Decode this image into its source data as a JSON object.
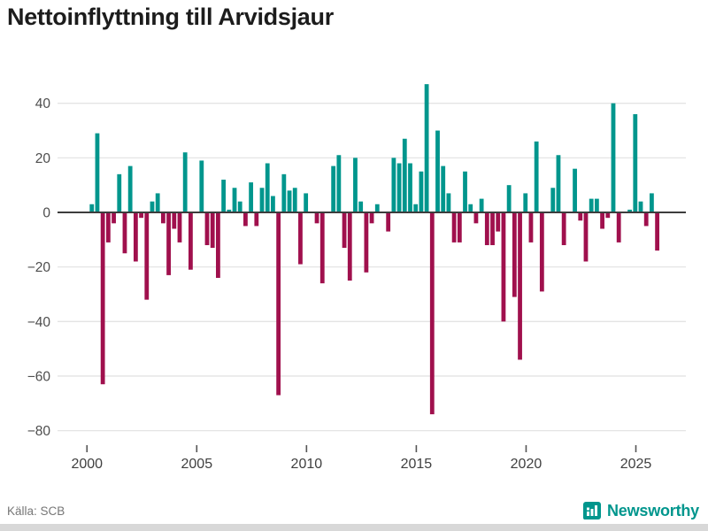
{
  "title": "Nettoinflyttning till Arvidsjaur",
  "source": "Källa: SCB",
  "brand": {
    "name": "Newsworthy",
    "color": "#00968D"
  },
  "colors": {
    "positive": "#00968D",
    "negative": "#A0104D",
    "grid": "#e4e4e4",
    "zero_line": "#3d3d3d",
    "axis_text": "#4d4d4d",
    "tick_mark": "#555555"
  },
  "chart_data": {
    "type": "bar",
    "title": "Nettoinflyttning till Arvidsjaur",
    "xlabel": "",
    "ylabel": "",
    "x_unit": "quarter",
    "grid": true,
    "legend": false,
    "ylim": [
      -85,
      50
    ],
    "y_ticks": [
      40,
      20,
      0,
      -20,
      -40,
      -60,
      -80
    ],
    "x_ticks": [
      2000,
      2005,
      2010,
      2015,
      2020,
      2025
    ],
    "categories": [
      "2000 Q1",
      "2000 Q2",
      "2000 Q3",
      "2000 Q4",
      "2001 Q1",
      "2001 Q2",
      "2001 Q3",
      "2001 Q4",
      "2002 Q1",
      "2002 Q2",
      "2002 Q3",
      "2002 Q4",
      "2003 Q1",
      "2003 Q2",
      "2003 Q3",
      "2003 Q4",
      "2004 Q1",
      "2004 Q2",
      "2004 Q3",
      "2004 Q4",
      "2005 Q1",
      "2005 Q2",
      "2005 Q3",
      "2005 Q4",
      "2006 Q1",
      "2006 Q2",
      "2006 Q3",
      "2006 Q4",
      "2007 Q1",
      "2007 Q2",
      "2007 Q3",
      "2007 Q4",
      "2008 Q1",
      "2008 Q2",
      "2008 Q3",
      "2008 Q4",
      "2009 Q1",
      "2009 Q2",
      "2009 Q3",
      "2009 Q4",
      "2010 Q1",
      "2010 Q2",
      "2010 Q3",
      "2010 Q4",
      "2011 Q1",
      "2011 Q2",
      "2011 Q3",
      "2011 Q4",
      "2012 Q1",
      "2012 Q2",
      "2012 Q3",
      "2012 Q4",
      "2013 Q1",
      "2013 Q2",
      "2013 Q3",
      "2013 Q4",
      "2014 Q1",
      "2014 Q2",
      "2014 Q3",
      "2014 Q4",
      "2015 Q1",
      "2015 Q2",
      "2015 Q3",
      "2015 Q4",
      "2016 Q1",
      "2016 Q2",
      "2016 Q3",
      "2016 Q4",
      "2017 Q1",
      "2017 Q2",
      "2017 Q3",
      "2017 Q4",
      "2018 Q1",
      "2018 Q2",
      "2018 Q3",
      "2018 Q4",
      "2019 Q1",
      "2019 Q2",
      "2019 Q3",
      "2019 Q4",
      "2020 Q1",
      "2020 Q2",
      "2020 Q3",
      "2020 Q4",
      "2021 Q1",
      "2021 Q2",
      "2021 Q3",
      "2021 Q4",
      "2022 Q1",
      "2022 Q2",
      "2022 Q3",
      "2022 Q4",
      "2023 Q1",
      "2023 Q2",
      "2023 Q3",
      "2023 Q4",
      "2024 Q1",
      "2024 Q2",
      "2024 Q3",
      "2024 Q4",
      "2025 Q1",
      "2025 Q2",
      "2025 Q3",
      "2025 Q4"
    ],
    "values": [
      3,
      29,
      -63,
      -11,
      -4,
      14,
      -15,
      17,
      -18,
      -2,
      -32,
      4,
      7,
      -4,
      -23,
      -6,
      -11,
      22,
      -21,
      0,
      19,
      -12,
      -13,
      -24,
      12,
      1,
      9,
      4,
      -5,
      11,
      -5,
      9,
      18,
      6,
      -67,
      14,
      8,
      9,
      -19,
      7,
      0,
      -4,
      -26,
      0,
      17,
      21,
      -13,
      -25,
      20,
      4,
      -22,
      -4,
      3,
      0,
      -7,
      20,
      18,
      27,
      18,
      3,
      15,
      47,
      -74,
      30,
      17,
      7,
      -11,
      -11,
      15,
      3,
      -4,
      5,
      -12,
      -12,
      -7,
      -40,
      10,
      -31,
      -54,
      7,
      -11,
      26,
      -29,
      0,
      9,
      21,
      -12,
      0,
      16,
      -3,
      -18,
      5,
      5,
      -6,
      -2,
      40,
      -11,
      0,
      1,
      36,
      4,
      -5,
      7,
      -14
    ]
  }
}
